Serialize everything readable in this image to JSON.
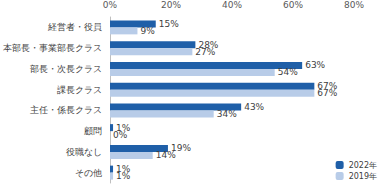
{
  "chart_data": {
    "type": "bar",
    "orientation": "horizontal",
    "categories": [
      "経営者・役員",
      "本部長・事業部長クラス",
      "部長・次長クラス",
      "課長クラス",
      "主任・係長クラス",
      "顧問",
      "役職なし",
      "その他"
    ],
    "series": [
      {
        "name": "2022年",
        "color": "#1f5fa8",
        "values": [
          15,
          28,
          63,
          67,
          43,
          1,
          19,
          1
        ],
        "value_labels": [
          "15%",
          "28%",
          "63%",
          "67%",
          "43%",
          "1%",
          "19%",
          "1%"
        ]
      },
      {
        "name": "2019年",
        "color": "#b8cce8",
        "values": [
          9,
          27,
          54,
          67,
          34,
          0,
          14,
          1
        ],
        "value_labels": [
          "9%",
          "27%",
          "54%",
          "67%",
          "34%",
          "0%",
          "14%",
          "1%"
        ]
      }
    ],
    "xlim": [
      0,
      80
    ],
    "xticks": [
      {
        "value": 0,
        "label": "0%"
      },
      {
        "value": 20,
        "label": "20%"
      },
      {
        "value": 40,
        "label": "40%"
      },
      {
        "value": 60,
        "label": "60%"
      },
      {
        "value": 80,
        "label": "80%"
      }
    ],
    "grid": false,
    "legend": "bottom right",
    "data_labels": true
  }
}
